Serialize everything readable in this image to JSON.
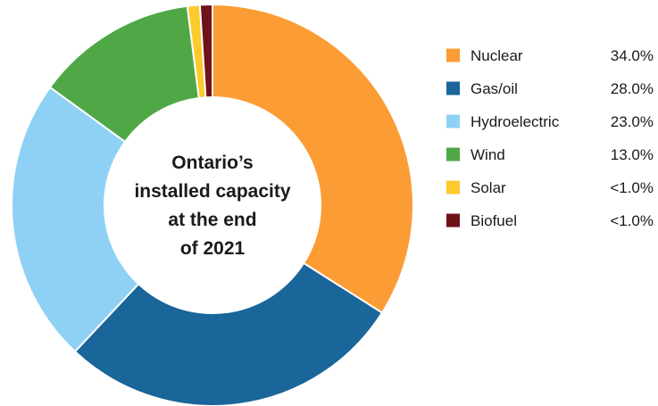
{
  "chart_data": {
    "type": "pie",
    "title": "Ontario’s installed capacity at the end of 2021",
    "title_lines": [
      "Ontario’s",
      "installed capacity",
      "at the end",
      "of 2021"
    ],
    "legend_placement": "right",
    "slices": [
      {
        "name": "Nuclear",
        "value": 34.0,
        "value_label": "34.0%",
        "color": "#fb9c34"
      },
      {
        "name": "Gas/oil",
        "value": 28.0,
        "value_label": "28.0%",
        "color": "#1a6599"
      },
      {
        "name": "Hydroelectric",
        "value": 23.0,
        "value_label": "23.0%",
        "color": "#8fd1f4"
      },
      {
        "name": "Wind",
        "value": 13.0,
        "value_label": "13.0%",
        "color": "#4fa845"
      },
      {
        "name": "Solar",
        "value": 1.0,
        "value_label": "<1.0%",
        "color": "#fdca2c"
      },
      {
        "name": "Biofuel",
        "value": 1.0,
        "value_label": "<1.0%",
        "color": "#6e1118"
      }
    ]
  }
}
